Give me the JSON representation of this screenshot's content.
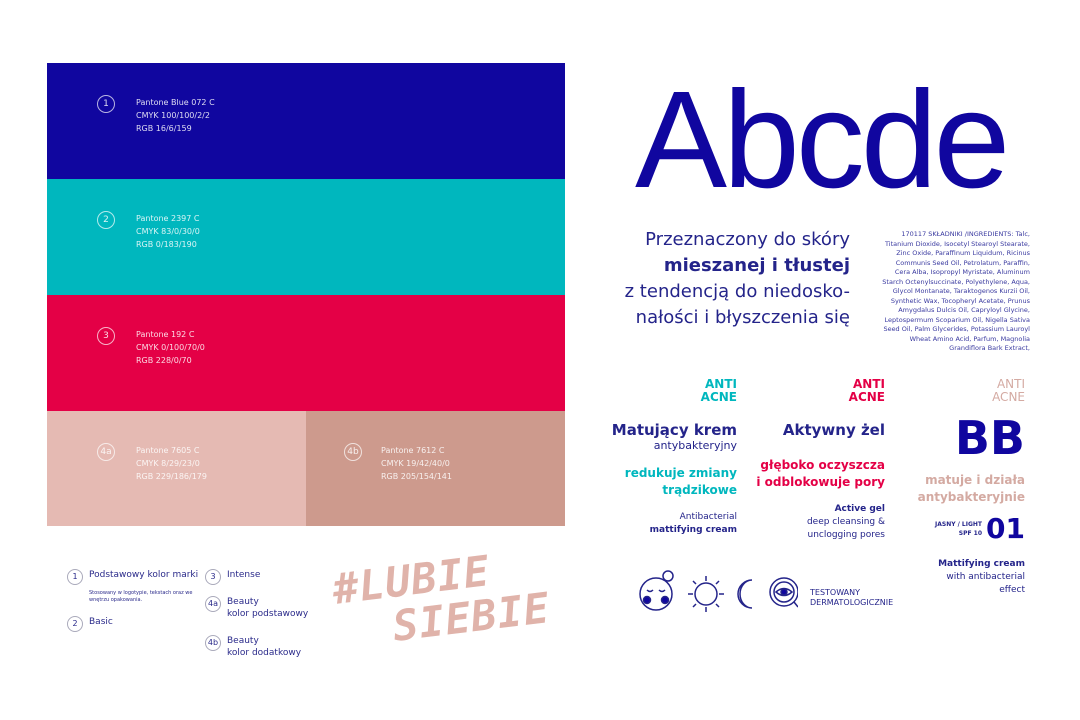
{
  "colors": {
    "blue": "#10069f",
    "teal": "#00b7be",
    "red": "#e40046",
    "pink_light": "#e5bab3",
    "pink_dark": "#cd9a8d",
    "ink": "#24248a"
  },
  "swatches": [
    {
      "num": "1",
      "lines": [
        "Pantone Blue 072 C",
        "CMYK 100/100/2/2",
        "RGB 16/6/159"
      ]
    },
    {
      "num": "2",
      "lines": [
        "Pantone 2397 C",
        "CMYK 83/0/30/0",
        "RGB 0/183/190"
      ]
    },
    {
      "num": "3",
      "lines": [
        "Pantone 192 C",
        "CMYK 0/100/70/0",
        "RGB 228/0/70"
      ]
    },
    {
      "num": "4a",
      "lines": [
        "Pantone 7605 C",
        "CMYK 8/29/23/0",
        "RGB 229/186/179"
      ]
    },
    {
      "num": "4b",
      "lines": [
        "Pantone 7612 C",
        "CMYK 19/42/40/0",
        "RGB 205/154/141"
      ]
    }
  ],
  "legend": [
    {
      "num": "1",
      "label": "Podstawowy kolor marki",
      "note": "Stosowany w logotypie, tekstach oraz we wnętrzu opakowania."
    },
    {
      "num": "2",
      "label": "Basic"
    },
    {
      "num": "3",
      "label": "Intense"
    },
    {
      "num": "4a",
      "label": "Beauty",
      "label2": "kolor podstawowy"
    },
    {
      "num": "4b",
      "label": "Beauty",
      "label2": "kolor dodatkowy"
    }
  ],
  "hashtag": {
    "line1": "#LUBIE",
    "line2": "SIEBIE"
  },
  "font_sample": "Abcde",
  "tagline": [
    "Przeznaczony do skóry",
    "mieszanej i tłustej",
    "z tendencją do niedosko-",
    "nałości i błyszczenia się"
  ],
  "ingredients": "170117 SKŁADNIKI /INGREDIENTS: Talc, Titanium Dioxide, Isocetyl Stearoyl Stearate, Zinc Oxide, Paraffinum Liquidum, Ricinus Communis Seed Oil, Petrolatum, Paraffin, Cera Alba, Isopropyl Myristate, Aluminum Starch Octenylsuccinate, Polyethylene, Aqua, Glycol Montanate, Taraktogenos Kurzii Oil, Synthetic Wax, Tocopheryl Acetate, Prunus Amygdalus Dulcis Oil, Capryloyl Glycine, Leptospermum Scoparium Oil, Nigella Sativa Seed Oil, Palm Glycerides, Potassium Lauroyl Wheat Amino Acid, Parfum, Magnolia Grandiflora Bark Extract,",
  "products": [
    {
      "anti": "ANTI",
      "acne": "ACNE",
      "title": "Matujący krem",
      "subtitle": "antybakteryjny",
      "claim1": "redukuje zmiany",
      "claim2": "trądzikowe",
      "en1": "Antibacterial",
      "en2": "mattifying cream"
    },
    {
      "anti": "ANTI",
      "acne": "ACNE",
      "title": "Aktywny żel",
      "claim1": "głęboko oczyszcza",
      "claim2": "i odblokowuje pory",
      "en1": "Active gel",
      "en2": "deep cleansing &",
      "en3": "unclogging pores"
    },
    {
      "anti": "ANTI",
      "acne": "ACNE",
      "title": "BB",
      "claim1": "matuje i działa",
      "claim2": "antybakteryjnie",
      "shade": "JASNY / LIGHT",
      "spf": "SPF 10",
      "shade_num": "01",
      "en1": "Mattifying cream",
      "en2": "with antibacterial",
      "en3": "effect"
    }
  ],
  "icons": [
    "face-icon",
    "sun-icon",
    "moon-icon",
    "eye-magnifier-icon"
  ],
  "tested": {
    "line1": "TESTOWANY",
    "line2": "DERMATOLOGICZNIE"
  }
}
